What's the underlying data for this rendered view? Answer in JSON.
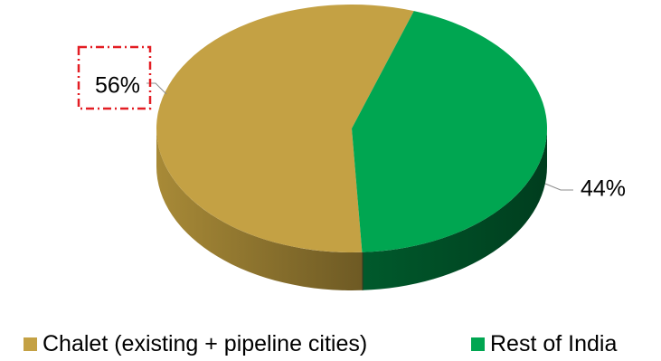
{
  "chart_data": {
    "type": "pie",
    "style": "3d",
    "slices": [
      {
        "label": "Chalet (existing + pipeline cities)",
        "value": 56,
        "data_label": "56%",
        "color": "#c4a144",
        "side_color_light": "#a88a37",
        "side_color_dark": "#6e5a24"
      },
      {
        "label": "Rest of India",
        "value": 44,
        "data_label": "44%",
        "color": "#00a651",
        "side_color_light": "#005a2c",
        "side_color_dark": "#003d1e"
      }
    ],
    "highlighted_label": "56%",
    "highlight_color": "#e31e24",
    "legend": {
      "position": "bottom",
      "items": [
        {
          "label": "Chalet (existing + pipeline cities)",
          "color": "#c4a144"
        },
        {
          "label": "Rest of India",
          "color": "#00a651"
        }
      ]
    }
  }
}
